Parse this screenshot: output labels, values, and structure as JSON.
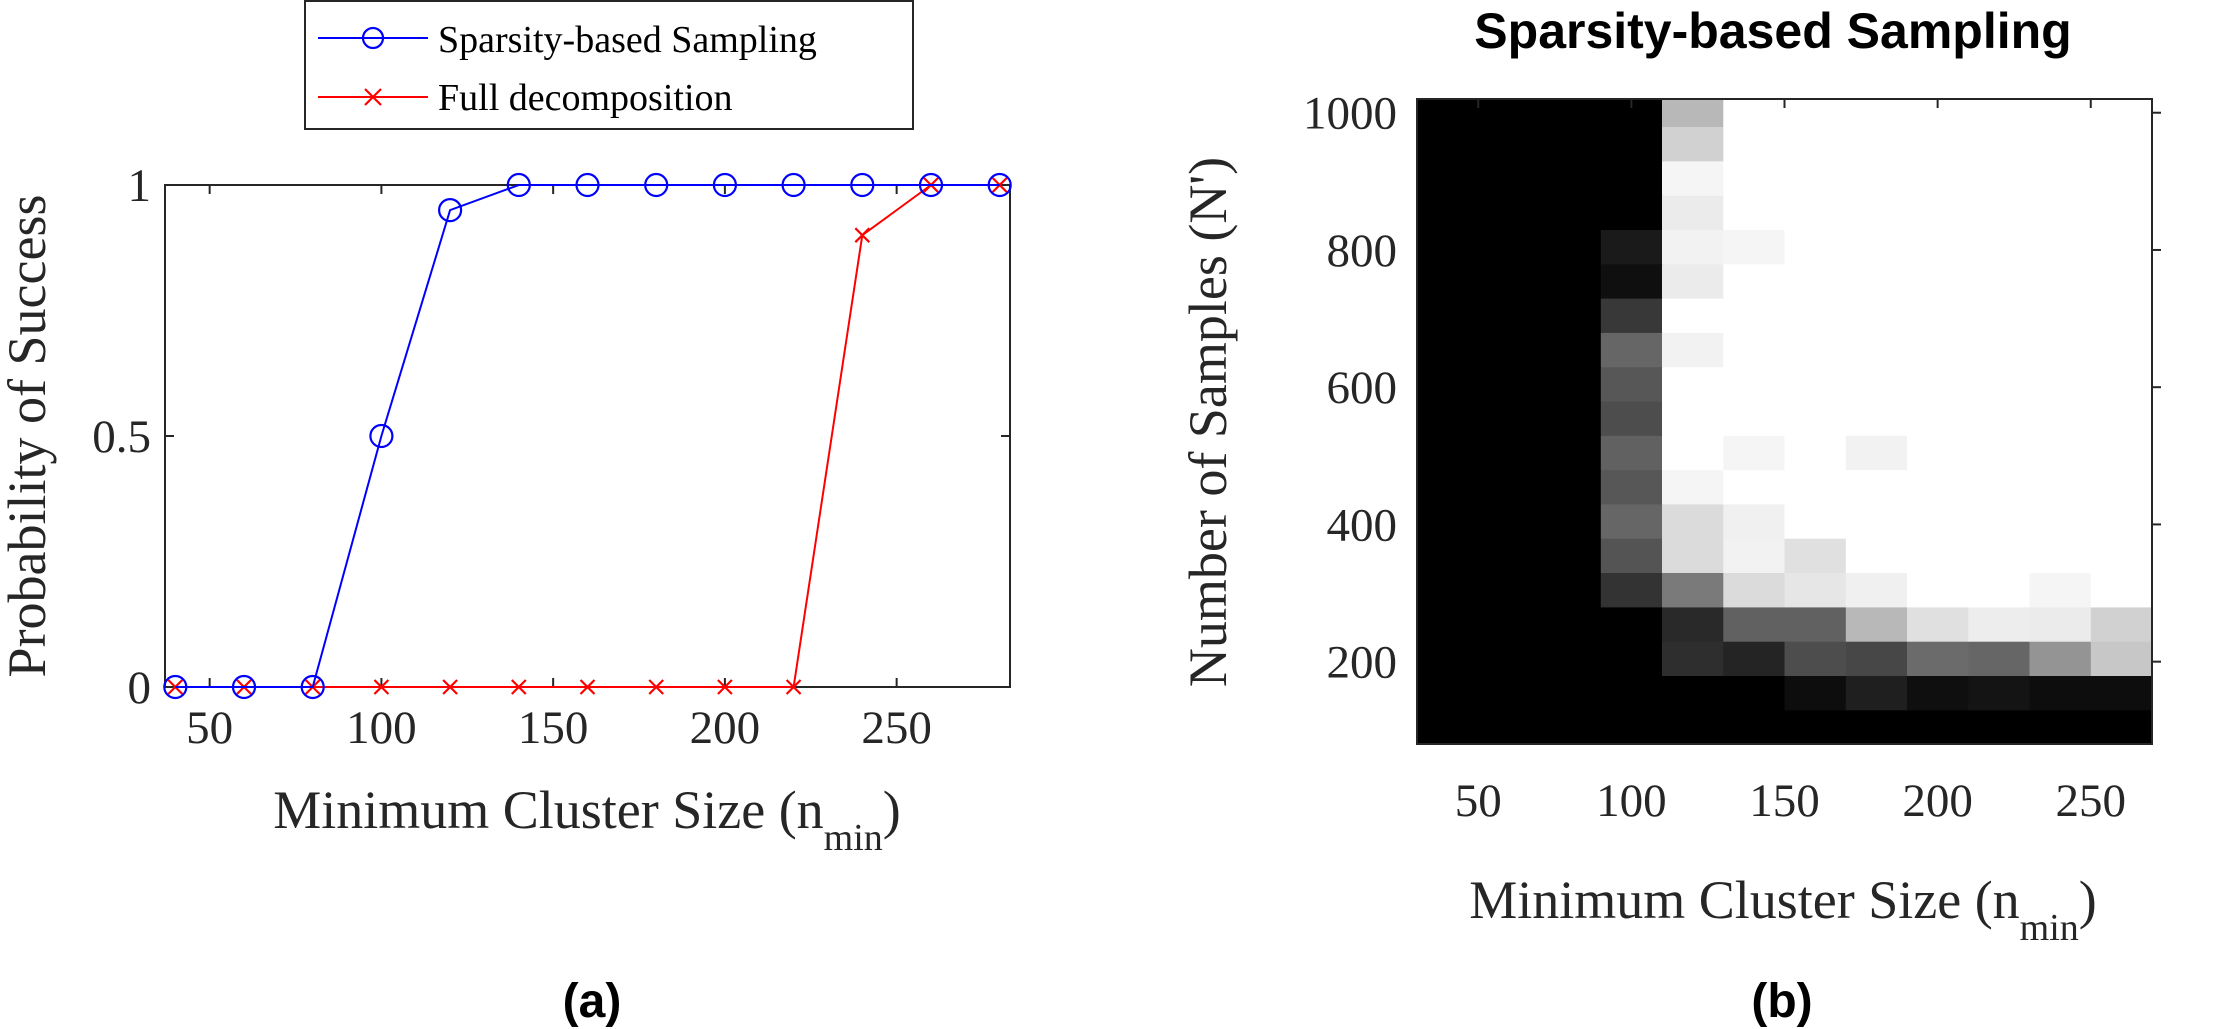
{
  "colors": {
    "sparsity": "#0000ff",
    "full": "#ff0000"
  },
  "chart_data": [
    {
      "panel": "(a)",
      "type": "line",
      "title": "",
      "xlabel": "Minimum Cluster Size (n",
      "xlabel_subscript": "min",
      "xlabel_close": ")",
      "ylabel": "Probability of Success",
      "xlim": [
        37,
        283
      ],
      "ylim": [
        0,
        1
      ],
      "xticks": [
        50,
        100,
        150,
        200,
        250
      ],
      "yticks": [
        0,
        0.5,
        1
      ],
      "legend_position": "top-center",
      "x": [
        40,
        60,
        80,
        100,
        120,
        140,
        160,
        180,
        200,
        220,
        240,
        260,
        280
      ],
      "series": [
        {
          "name": "Sparsity-based Sampling",
          "marker": "circle",
          "values": [
            0,
            0,
            0,
            0.5,
            0.95,
            1,
            1,
            1,
            1,
            1,
            1,
            1,
            1
          ]
        },
        {
          "name": "Full decomposition",
          "marker": "x",
          "values": [
            0,
            0,
            0,
            0,
            0,
            0,
            0,
            0,
            0,
            0,
            0.9,
            1,
            1
          ]
        }
      ]
    },
    {
      "panel": "(b)",
      "type": "heatmap",
      "title": "Sparsity-based Sampling",
      "xlabel": "Minimum Cluster Size (n",
      "xlabel_subscript": "min",
      "xlabel_close": ")",
      "ylabel": "Number of Samples (N')",
      "x_range": [
        30,
        270
      ],
      "y_range": [
        80,
        1020
      ],
      "xticks": [
        50,
        100,
        150,
        200,
        250
      ],
      "yticks": [
        200,
        400,
        600,
        800,
        1000
      ],
      "x_bins": [
        30,
        50,
        70,
        90,
        110,
        130,
        150,
        170,
        190,
        210,
        230,
        250,
        270
      ],
      "y_bins": [
        80,
        130,
        180,
        230,
        280,
        330,
        380,
        430,
        480,
        530,
        580,
        630,
        680,
        730,
        780,
        830,
        880,
        930,
        980,
        1020
      ],
      "value_scale": "0 = black, 1 = white",
      "values": [
        [
          0,
          0,
          0,
          0,
          0,
          0,
          0,
          0,
          0,
          0,
          0,
          0
        ],
        [
          0,
          0,
          0,
          0,
          0,
          0,
          0.05,
          0.12,
          0.06,
          0.08,
          0.05,
          0.05
        ],
        [
          0,
          0,
          0,
          0,
          0.18,
          0.14,
          0.3,
          0.28,
          0.42,
          0.4,
          0.58,
          0.78
        ],
        [
          0,
          0,
          0,
          0,
          0.16,
          0.38,
          0.38,
          0.72,
          0.88,
          0.93,
          0.92,
          0.82
        ],
        [
          0,
          0,
          0,
          0.2,
          0.48,
          0.86,
          0.9,
          0.94,
          1,
          1,
          0.96,
          1
        ],
        [
          0,
          0,
          0,
          0.33,
          0.86,
          0.95,
          0.88,
          1,
          1,
          1,
          1,
          1
        ],
        [
          0,
          0,
          0,
          0.4,
          0.86,
          0.94,
          1,
          1,
          1,
          1,
          1,
          1
        ],
        [
          0,
          0,
          0,
          0.34,
          0.96,
          1,
          1,
          1,
          1,
          1,
          1,
          1
        ],
        [
          0,
          0,
          0,
          0.38,
          1,
          0.96,
          1,
          0.95,
          1,
          1,
          1,
          1
        ],
        [
          0,
          0,
          0,
          0.3,
          1,
          1,
          1,
          1,
          1,
          1,
          1,
          1
        ],
        [
          0,
          0,
          0,
          0.34,
          1,
          1,
          1,
          1,
          1,
          1,
          1,
          1
        ],
        [
          0,
          0,
          0,
          0.4,
          0.95,
          1,
          1,
          1,
          1,
          1,
          1,
          1
        ],
        [
          0,
          0,
          0,
          0.22,
          1,
          1,
          1,
          1,
          1,
          1,
          1,
          1
        ],
        [
          0,
          0,
          0,
          0.06,
          0.92,
          1,
          1,
          1,
          1,
          1,
          1,
          1
        ],
        [
          0,
          0,
          0,
          0.1,
          0.95,
          0.96,
          1,
          1,
          1,
          1,
          1,
          1
        ],
        [
          0,
          0,
          0,
          0,
          0.92,
          1,
          1,
          1,
          1,
          1,
          1,
          1
        ],
        [
          0,
          0,
          0,
          0,
          0.96,
          1,
          1,
          1,
          1,
          1,
          1,
          1
        ],
        [
          0,
          0,
          0,
          0,
          0.82,
          1,
          1,
          1,
          1,
          1,
          1,
          1
        ],
        [
          0,
          0,
          0,
          0,
          0.72,
          1,
          1,
          1,
          1,
          1,
          1,
          1
        ]
      ]
    }
  ]
}
